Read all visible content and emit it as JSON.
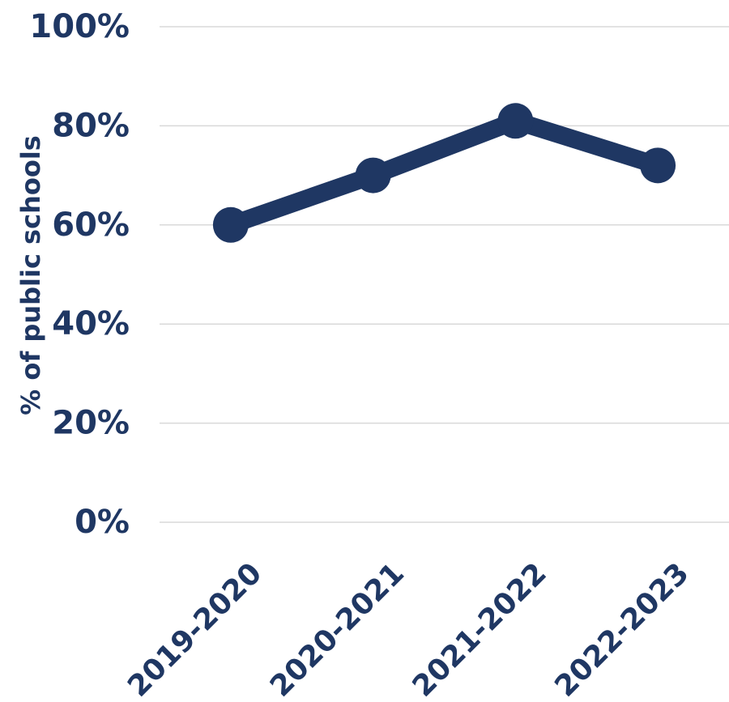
{
  "chart_data": {
    "type": "line",
    "y_label": "% of  public schools",
    "categories": [
      "2019-2020",
      "2020-2021",
      "2021-2022",
      "2022-2023"
    ],
    "series": [
      {
        "name": null,
        "color": "#1f3763",
        "values": [
          60,
          70,
          81,
          72
        ]
      }
    ],
    "ylim": [
      0,
      100
    ],
    "yticks": [
      {
        "value": 0,
        "label": "0%"
      },
      {
        "value": 20,
        "label": "20%"
      },
      {
        "value": 40,
        "label": "40%"
      },
      {
        "value": 60,
        "label": "60%"
      },
      {
        "value": 80,
        "label": "80%"
      },
      {
        "value": 100,
        "label": "100%"
      }
    ],
    "grid": true
  }
}
